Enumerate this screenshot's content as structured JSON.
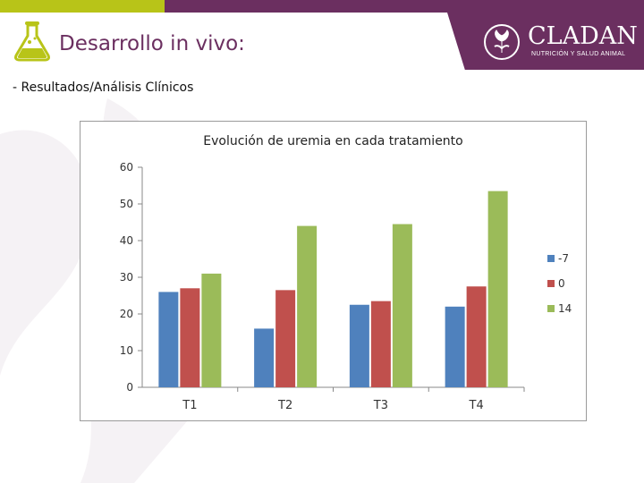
{
  "header": {
    "title": "Desarrollo in vivo:",
    "logo_name": "CLADAN",
    "logo_tagline": "NUTRICIÓN Y SALUD ANIMAL",
    "colors": {
      "accent_green": "#b8c418",
      "brand_purple": "#6b2f60"
    }
  },
  "subtitle": "- Resultados/Análisis Clínicos",
  "icons": {
    "header": "flask-icon",
    "logo": "thistle-seal-icon"
  },
  "chart_data": {
    "type": "bar",
    "title": "Evolución de uremia en cada tratamiento",
    "xlabel": "",
    "ylabel": "",
    "categories": [
      "T1",
      "T2",
      "T3",
      "T4"
    ],
    "series": [
      {
        "name": "-7",
        "values": [
          26,
          16,
          22.5,
          22
        ],
        "color": "#4f81bd"
      },
      {
        "name": "0",
        "values": [
          27,
          26.5,
          23.5,
          27.5
        ],
        "color": "#c0504d"
      },
      {
        "name": "14",
        "values": [
          31,
          44,
          44.5,
          53.5
        ],
        "color": "#9bbb59"
      }
    ],
    "ylim": [
      0,
      60
    ],
    "yticks": [
      0,
      10,
      20,
      30,
      40,
      50,
      60
    ],
    "grid": false,
    "legend": "right"
  }
}
